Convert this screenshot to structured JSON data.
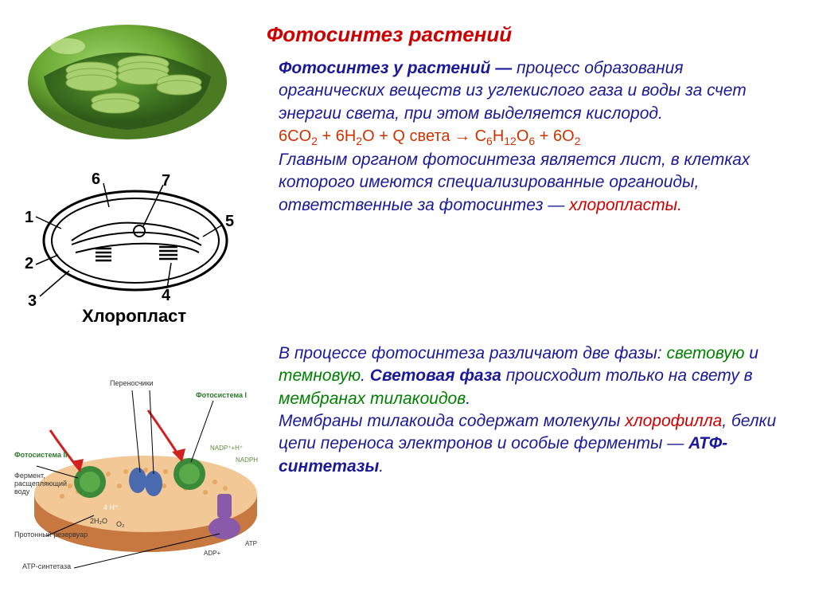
{
  "title": "Фотосинтез растений",
  "block1": {
    "intro_bold": "Фотосинтез у растений —",
    "intro_rest": " процесс образования органических веществ из углекислого газа и воды за счет энергии света, при этом выделяется кислород.",
    "equation_html": "6CO<sub>2</sub> + 6H<sub>2</sub>O + Q света &rarr; C<sub>6</sub>H<sub>12</sub>O<sub>6</sub> + 6O<sub>2</sub>",
    "mid": "Главным органом фотосинтеза является лист, в клетках которого имеются специализированные органоиды, ответственные за фотосинтез — ",
    "chloroplasts": "хлоропласты."
  },
  "block2": {
    "p1a": "В процессе фотосинтеза различают две фазы: ",
    "light_phase": "световую",
    "and": " и ",
    "dark_phase": "темновую",
    "period": ". ",
    "light_bold": "Световая фаза",
    "p1b": " происходит только на свету в ",
    "membranes": "мембранах тилакоидов",
    "p1c": ".",
    "p2a": "Мембраны тилакоида содержат молекулы ",
    "chlorophyll": "хлорофилла",
    "p2b": ", белки цепи переноса электронов и особые ферменты — ",
    "atp": "АТФ-синтетазы",
    "p2c": "."
  },
  "diagram_nums": [
    "1",
    "2",
    "3",
    "4",
    "5",
    "6",
    "7"
  ],
  "diagram_label": "Хлоропласт",
  "thylakoid_labels": {
    "ps1": "Фотосистема I",
    "ps2": "Фотосистема II",
    "transporters": "Переносчики",
    "enzyme": "Фермент,\nрасщепляющий\nводу",
    "reservoir": "Протонный резервуар",
    "synthetase": "АТР-синтетаза"
  },
  "colors": {
    "title": "#cc0000",
    "blue": "#1a1a99",
    "equation": "#cc3300",
    "red_italic": "#cc0000",
    "green_italic": "#008000",
    "chloroplast_outer": "#6aa833",
    "chloroplast_inner": "#3d7a1e",
    "membrane_top": "#e8a370",
    "membrane_edge": "#c67840"
  }
}
